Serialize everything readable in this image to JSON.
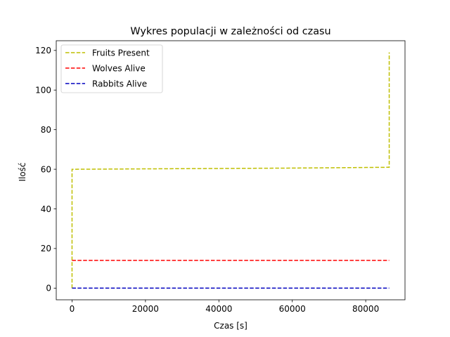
{
  "chart_data": {
    "type": "line",
    "title": "Wykres populacji w zależności od czasu",
    "xlabel": "Czas [s]",
    "ylabel": "Ilość",
    "xlim": [
      -4300,
      90700
    ],
    "ylim": [
      -5.9,
      124.9
    ],
    "xticks": [
      0,
      20000,
      40000,
      60000,
      80000
    ],
    "xtick_labels": [
      "0",
      "20000",
      "40000",
      "60000",
      "80000"
    ],
    "yticks": [
      0,
      20,
      40,
      60,
      80,
      100,
      120
    ],
    "ytick_labels": [
      "0",
      "20",
      "40",
      "60",
      "80",
      "100",
      "120"
    ],
    "grid": false,
    "legend_position": "top-left",
    "series": [
      {
        "name": "Fruits Present",
        "color": "#bfbf00",
        "style": "dashed",
        "x": [
          0,
          0,
          20000,
          40000,
          60000,
          80000,
          86400,
          86400
        ],
        "y": [
          0,
          60,
          60.2,
          60.4,
          60.6,
          60.9,
          61,
          119
        ]
      },
      {
        "name": "Wolves Alive",
        "color": "#ff0000",
        "style": "dashed",
        "x": [
          0,
          86400
        ],
        "y": [
          14,
          14
        ]
      },
      {
        "name": "Rabbits Alive",
        "color": "#0000bf",
        "style": "dashed",
        "x": [
          0,
          86400
        ],
        "y": [
          0,
          0
        ]
      }
    ]
  }
}
